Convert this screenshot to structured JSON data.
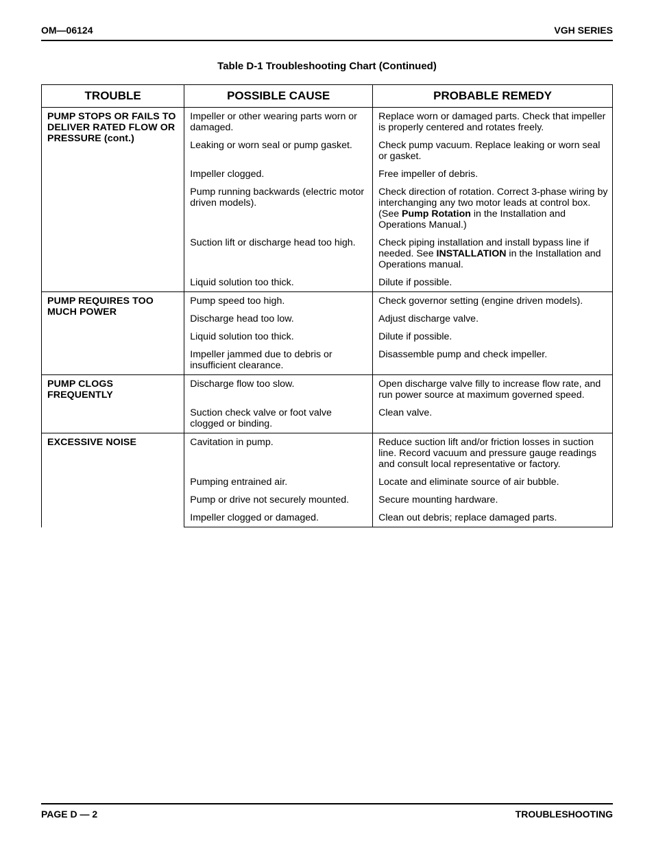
{
  "header": {
    "left": "OM—06124",
    "right": "VGH SERIES"
  },
  "tableTitle": "Table D-1 Troubleshooting Chart (Continued)",
  "columns": {
    "c1": "TROUBLE",
    "c2": "POSSIBLE CAUSE",
    "c3": "PROBABLE REMEDY"
  },
  "troubles": {
    "t1": "PUMP STOPS OR FAILS TO DELIVER RATED FLOW OR PRESSURE (cont.)",
    "t2": "PUMP REQUIRES TOO MUCH POWER",
    "t3": "PUMP CLOGS FREQUENTLY",
    "t4": "EXCESSIVE NOISE"
  },
  "rows": {
    "r1": {
      "cause": "Impeller or other wearing parts worn or damaged.",
      "remedy": "Replace worn or damaged parts. Check that impeller is properly centered and rotates freely."
    },
    "r2": {
      "cause": "Leaking or worn seal or pump gasket.",
      "remedy": "Check pump vacuum. Replace leaking or worn seal or gasket."
    },
    "r3": {
      "cause": "Impeller clogged.",
      "remedy": "Free impeller of debris."
    },
    "r4": {
      "cause": "Pump running backwards (electric motor driven models).",
      "remedyPre": "Check direction of rotation. Correct 3-phase wiring by interchanging any two motor leads at control box. (See ",
      "remedyBold": "Pump Rotation",
      "remedyPost": " in the Installation and Operations Manual.)"
    },
    "r5": {
      "cause": "Suction lift or discharge head too high.",
      "remedyPre": "Check piping installation and install bypass line if needed. See ",
      "remedyBold": "INSTALLATION",
      "remedyPost": " in the Installation and Operations manual."
    },
    "r6": {
      "cause": "Liquid solution too thick.",
      "remedy": "Dilute if possible."
    },
    "r7": {
      "cause": "Pump speed too high.",
      "remedy": "Check governor setting (engine driven models)."
    },
    "r8": {
      "cause": "Discharge head too low.",
      "remedy": "Adjust discharge valve."
    },
    "r9": {
      "cause": "Liquid solution too thick.",
      "remedy": "Dilute if possible."
    },
    "r10": {
      "cause": "Impeller jammed due to debris or insufficient clearance.",
      "remedy": "Disassemble pump and check impeller."
    },
    "r11": {
      "cause": "Discharge flow too slow.",
      "remedy": "Open discharge valve filly to increase flow rate, and run power source at maximum governed speed."
    },
    "r12": {
      "cause": "Suction check valve or foot valve clogged or binding.",
      "remedy": "Clean valve."
    },
    "r13": {
      "cause": "Cavitation in pump.",
      "remedy": "Reduce suction lift and/or friction losses in suction line. Record vacuum and pressure gauge readings and consult local representative or factory."
    },
    "r14": {
      "cause": "Pumping entrained air.",
      "remedy": "Locate and eliminate source of air bubble."
    },
    "r15": {
      "cause": "Pump or drive not securely mounted.",
      "remedy": "Secure mounting hardware."
    },
    "r16": {
      "cause": "Impeller clogged or damaged.",
      "remedy": "Clean out debris; replace damaged parts."
    }
  },
  "footer": {
    "left": "PAGE D — 2",
    "right": "TROUBLESHOOTING"
  }
}
